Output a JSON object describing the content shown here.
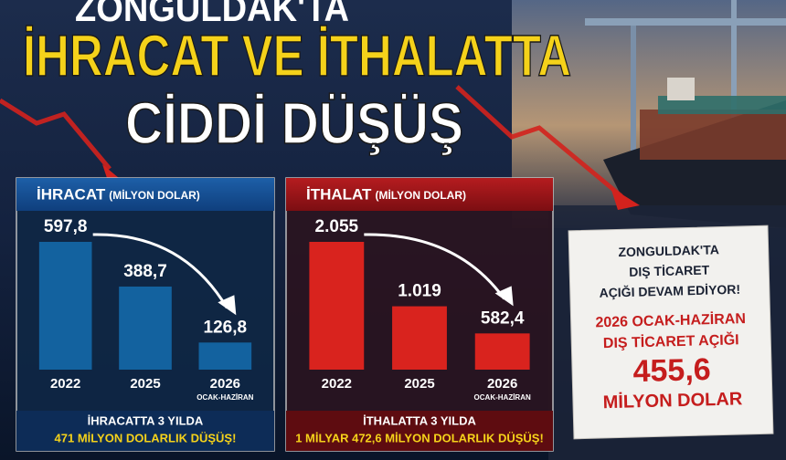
{
  "headline": {
    "line1": "ZONGULDAK'TA",
    "line2": "İHRACAT VE İTHALATTA",
    "line3": "CİDDİ DÜŞÜŞ"
  },
  "chart_data": [
    {
      "type": "bar",
      "title": "İHRACAT",
      "subtitle": "(MİLYON DOLAR)",
      "categories": [
        "2022",
        "2025",
        "2026"
      ],
      "category_notes": [
        null,
        null,
        "OCAK-HAZİRAN"
      ],
      "values": [
        597.8,
        388.7,
        126.8
      ],
      "value_labels": [
        "597,8",
        "388,7",
        "126,8"
      ],
      "color": "#13629f",
      "footer": [
        "İHRACATTA 3 YILDA",
        "471 MİLYON DOLARLIK DÜŞÜŞ!"
      ]
    },
    {
      "type": "bar",
      "title": "İTHALAT",
      "subtitle": "(MİLYON DOLAR)",
      "categories": [
        "2022",
        "2025",
        "2026"
      ],
      "category_notes": [
        null,
        null,
        "OCAK-HAZİRAN"
      ],
      "values": [
        2055,
        1019,
        582.4
      ],
      "value_labels": [
        "2.055",
        "1.019",
        "582,4"
      ],
      "color": "#d9231e",
      "footer": [
        "İTHALATTA 3 YILDA",
        "1 MİLYAR 472,6 MİLYON DOLARLIK DÜŞÜŞ!"
      ]
    }
  ],
  "note": {
    "line1": "ZONGULDAK'TA",
    "line2": "DIŞ TİCARET",
    "line3": "AÇIĞI DEVAM EDİYOR!",
    "line4": "2026 OCAK-HAZİRAN",
    "line5": "DIŞ TİCARET AÇIĞI",
    "amount": "455,6",
    "unit": "MİLYON DOLAR"
  }
}
